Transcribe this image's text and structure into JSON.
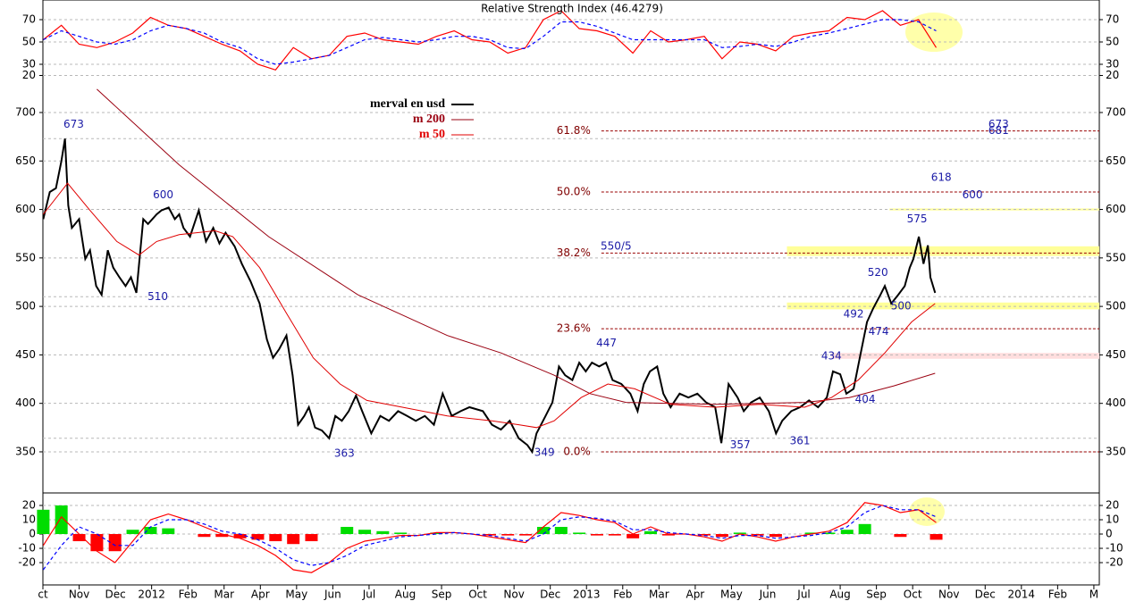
{
  "chart_data": [
    {
      "type": "line",
      "title": "Relative Strength Index (46.4279)",
      "xlim": [
        0,
        29.15
      ],
      "ylim": [
        10,
        87.6
      ],
      "yticks": [
        20,
        30,
        50,
        70
      ],
      "grid": true,
      "x": [
        0.01,
        0.51,
        1.0,
        1.49,
        1.99,
        2.48,
        2.97,
        3.46,
        3.96,
        4.45,
        4.94,
        5.44,
        5.93,
        6.42,
        6.91,
        7.41,
        7.9,
        8.39,
        8.88,
        9.38,
        9.87,
        10.36,
        10.86,
        11.35,
        11.84,
        12.33,
        12.83,
        13.32,
        13.81,
        14.3,
        14.8,
        15.29,
        15.78,
        16.28,
        16.77,
        17.26,
        17.75,
        18.25,
        18.74,
        19.23,
        19.72,
        20.22,
        20.71,
        21.2,
        21.69,
        22.19,
        22.68,
        23.17,
        23.66,
        24.16,
        24.65
      ],
      "series": [
        {
          "color": "#ff0000",
          "values": [
            52,
            65,
            48,
            45,
            50,
            58,
            72,
            65,
            62,
            55,
            48,
            42,
            30,
            25,
            45,
            35,
            38,
            55,
            58,
            52,
            50,
            48,
            55,
            60,
            52,
            50,
            40,
            45,
            70,
            78,
            62,
            60,
            55,
            40,
            60,
            50,
            52,
            55,
            35,
            50,
            48,
            42,
            55,
            58,
            60,
            72,
            70,
            78,
            65,
            70,
            45
          ]
        },
        {
          "color": "#0000ff",
          "dash": true,
          "values": [
            52,
            60,
            55,
            50,
            48,
            52,
            60,
            65,
            62,
            58,
            50,
            45,
            35,
            30,
            32,
            35,
            38,
            45,
            52,
            54,
            52,
            50,
            52,
            55,
            55,
            52,
            45,
            44,
            55,
            68,
            68,
            64,
            58,
            52,
            52,
            52,
            52,
            52,
            45,
            46,
            48,
            46,
            50,
            55,
            58,
            62,
            66,
            70,
            70,
            68,
            60
          ]
        }
      ]
    },
    {
      "type": "line",
      "xlim": [
        0,
        29.15
      ],
      "ylim": [
        307.6,
        726.7
      ],
      "yticks": [
        350,
        400,
        450,
        500,
        550,
        600,
        650,
        700
      ],
      "grid": true,
      "series": [
        {
          "name": "merval en usd",
          "color": "#000000",
          "width": 2,
          "x": [
            0.01,
            0.19,
            0.36,
            0.51,
            0.61,
            0.7,
            0.8,
            1.0,
            1.17,
            1.3,
            1.47,
            1.62,
            1.79,
            1.94,
            2.11,
            2.28,
            2.43,
            2.58,
            2.77,
            2.9,
            3.14,
            3.27,
            3.47,
            3.64,
            3.76,
            3.88,
            4.06,
            4.3,
            4.5,
            4.7,
            4.87,
            5.04,
            5.29,
            5.49,
            5.73,
            5.98,
            6.18,
            6.35,
            6.52,
            6.72,
            6.89,
            7.04,
            7.21,
            7.34,
            7.51,
            7.7,
            7.9,
            8.07,
            8.25,
            8.44,
            8.64,
            8.81,
            9.06,
            9.31,
            9.55,
            9.8,
            10.05,
            10.29,
            10.54,
            10.79,
            11.03,
            11.28,
            11.53,
            11.77,
            12.14,
            12.39,
            12.64,
            12.88,
            13.13,
            13.37,
            13.5,
            13.62,
            13.87,
            14.06,
            14.24,
            14.41,
            14.61,
            14.8,
            14.98,
            15.15,
            15.35,
            15.54,
            15.72,
            15.96,
            16.21,
            16.41,
            16.58,
            16.75,
            16.95,
            17.12,
            17.32,
            17.57,
            17.81,
            18.06,
            18.3,
            18.55,
            18.72,
            18.92,
            19.17,
            19.34,
            19.54,
            19.78,
            20.03,
            20.23,
            20.4,
            20.65,
            20.89,
            21.14,
            21.39,
            21.63,
            21.8,
            22.0,
            22.17,
            22.37,
            22.54,
            22.74,
            22.91,
            23.11,
            23.23,
            23.41,
            23.6,
            23.78,
            23.92,
            24.02,
            24.17,
            24.3,
            24.42,
            24.49,
            24.62
          ],
          "values": [
            590,
            618,
            622,
            650,
            673,
            604,
            581,
            590,
            549,
            558,
            521,
            512,
            558,
            540,
            530,
            521,
            530,
            514,
            590,
            585,
            595,
            599,
            602,
            590,
            595,
            581,
            572,
            599,
            567,
            581,
            565,
            576,
            562,
            544,
            526,
            503,
            466,
            447,
            456,
            470,
            429,
            378,
            387,
            396,
            375,
            372,
            364,
            387,
            382,
            392,
            408,
            392,
            369,
            387,
            382,
            392,
            387,
            382,
            387,
            378,
            410,
            387,
            392,
            396,
            392,
            378,
            373,
            382,
            364,
            357,
            350,
            369,
            387,
            401,
            438,
            429,
            424,
            442,
            433,
            442,
            438,
            442,
            424,
            420,
            410,
            392,
            420,
            433,
            438,
            410,
            396,
            410,
            406,
            410,
            401,
            396,
            359,
            420,
            406,
            392,
            401,
            406,
            392,
            369,
            382,
            392,
            396,
            403,
            396,
            406,
            433,
            430,
            410,
            415,
            447,
            484,
            498,
            512,
            521,
            503,
            512,
            521,
            540,
            549,
            572,
            544,
            563,
            530,
            514
          ]
        },
        {
          "name": "m 200",
          "color": "#9a0010",
          "width": 1,
          "x": [
            1.49,
            3.76,
            6.23,
            8.69,
            11.16,
            12.64,
            14.11,
            15.1,
            16.09,
            18.55,
            21.02,
            22.25,
            23.48,
            24.62
          ],
          "values": [
            724,
            646,
            572,
            512,
            470,
            452,
            429,
            410,
            401,
            399,
            401,
            406,
            418,
            431
          ]
        },
        {
          "name": "m 50",
          "color": "#e00000",
          "width": 1,
          "x": [
            0.01,
            0.68,
            1.3,
            2.04,
            2.65,
            3.14,
            3.76,
            4.75,
            5.24,
            5.98,
            6.72,
            7.46,
            8.2,
            8.94,
            9.92,
            11.16,
            12.39,
            13.13,
            13.62,
            14.11,
            14.85,
            15.59,
            16.33,
            17.32,
            18.55,
            19.78,
            21.02,
            21.76,
            22.5,
            23.23,
            23.97,
            24.62
          ],
          "values": [
            595,
            627,
            599,
            567,
            553,
            567,
            574,
            578,
            572,
            540,
            493,
            447,
            420,
            403,
            396,
            387,
            382,
            378,
            375,
            382,
            406,
            420,
            415,
            399,
            396,
            399,
            396,
            406,
            424,
            452,
            484,
            503
          ]
        }
      ],
      "hlines": [
        673,
        510,
        364
      ],
      "bands": [
        {
          "from": 552,
          "to": 562,
          "start": 20.53,
          "color": "#ffff99"
        },
        {
          "from": 497,
          "to": 504,
          "start": 20.53,
          "color": "#ffff99"
        },
        {
          "from": 446,
          "to": 452,
          "start": 21.76,
          "color": "#ffdede"
        },
        {
          "from": 599,
          "to": 601,
          "start": 23.36,
          "color": "#ffff99"
        }
      ],
      "fib_start": 15.41,
      "fibonacci": [
        {
          "label": "61.8%",
          "value": 681
        },
        {
          "label": "50.0%",
          "value": 618
        },
        {
          "label": "38.2%",
          "value": 555
        },
        {
          "label": "23.6%",
          "value": 477
        },
        {
          "label": "0.0%",
          "value": 350
        }
      ],
      "annotations": [
        {
          "x": 0.85,
          "value": 673,
          "side": "above"
        },
        {
          "x": 3.32,
          "value": 600,
          "side": "above"
        },
        {
          "x": 3.17,
          "value": 510,
          "side": "center"
        },
        {
          "x": 8.32,
          "value": 363,
          "side": "below"
        },
        {
          "x": 13.84,
          "value": 349,
          "side": "center"
        },
        {
          "x": 15.55,
          "value": 447,
          "side": "above"
        },
        {
          "x": 19.24,
          "value": 357,
          "side": "center"
        },
        {
          "x": 20.89,
          "value": 361,
          "side": "center"
        },
        {
          "x": 21.76,
          "value": 434,
          "side": "above"
        },
        {
          "x": 22.69,
          "value": 404,
          "side": "center"
        },
        {
          "x": 22.37,
          "value": 492,
          "side": "center"
        },
        {
          "x": 23.06,
          "value": 474,
          "side": "center"
        },
        {
          "x": 23.68,
          "value": 500,
          "side": "center"
        },
        {
          "x": 23.04,
          "value": 520,
          "side": "above"
        },
        {
          "x": 24.12,
          "value": 575,
          "side": "above"
        },
        {
          "x": 24.79,
          "value": 618,
          "side": "above"
        },
        {
          "x": 25.65,
          "value": 600,
          "side": "above"
        },
        {
          "x": 26.37,
          "value": 673,
          "side": "above"
        },
        {
          "x": 26.37,
          "value": 681,
          "side": "center"
        }
      ],
      "text_notes": [
        "550/5"
      ]
    },
    {
      "type": "line",
      "xlim": [
        0,
        29.15
      ],
      "ylim": [
        -35.6,
        28.75
      ],
      "yticks": [
        -20,
        -10,
        0,
        10,
        20
      ],
      "grid": true,
      "xticks": [
        {
          "value": 0,
          "label": "ct"
        },
        {
          "value": 1,
          "label": "Nov"
        },
        {
          "value": 2,
          "label": "Dec"
        },
        {
          "value": 3,
          "label": "2012"
        },
        {
          "value": 4,
          "label": "Feb"
        },
        {
          "value": 5,
          "label": "Mar"
        },
        {
          "value": 6,
          "label": "Apr"
        },
        {
          "value": 7,
          "label": "May"
        },
        {
          "value": 8,
          "label": "Jun"
        },
        {
          "value": 9,
          "label": "Jul"
        },
        {
          "value": 10,
          "label": "Aug"
        },
        {
          "value": 11,
          "label": "Sep"
        },
        {
          "value": 12,
          "label": "Oct"
        },
        {
          "value": 13,
          "label": "Nov"
        },
        {
          "value": 14,
          "label": "Dec"
        },
        {
          "value": 15,
          "label": "2013"
        },
        {
          "value": 16,
          "label": "Feb"
        },
        {
          "value": 17,
          "label": "Mar"
        },
        {
          "value": 18,
          "label": "Apr"
        },
        {
          "value": 19,
          "label": "May"
        },
        {
          "value": 20,
          "label": "Jun"
        },
        {
          "value": 21,
          "label": "Jul"
        },
        {
          "value": 22,
          "label": "Aug"
        },
        {
          "value": 23,
          "label": "Sep"
        },
        {
          "value": 24,
          "label": "Oct"
        },
        {
          "value": 25,
          "label": "Nov"
        },
        {
          "value": 26,
          "label": "Dec"
        },
        {
          "value": 27,
          "label": "2014"
        },
        {
          "value": 28,
          "label": "Feb"
        },
        {
          "value": 29,
          "label": "M"
        }
      ],
      "x": [
        0.01,
        0.51,
        1.0,
        1.49,
        1.99,
        2.48,
        2.97,
        3.46,
        3.96,
        4.45,
        4.94,
        5.44,
        5.93,
        6.42,
        6.91,
        7.41,
        7.9,
        8.39,
        8.88,
        9.38,
        9.87,
        10.36,
        10.86,
        11.35,
        11.84,
        12.33,
        12.83,
        13.32,
        13.81,
        14.3,
        14.8,
        15.29,
        15.78,
        16.28,
        16.77,
        17.26,
        17.75,
        18.25,
        18.74,
        19.23,
        19.72,
        20.22,
        20.71,
        21.2,
        21.69,
        22.19,
        22.68,
        23.17,
        23.66,
        24.16,
        24.65
      ],
      "histogram": {
        "colors": [
          "#00dd00",
          "#ff0000"
        ],
        "values": [
          17,
          20,
          -5,
          -12,
          -12,
          3,
          5,
          4,
          0,
          -2,
          -2,
          -3,
          -4,
          -5,
          -7,
          -5,
          0,
          5,
          3,
          2,
          1,
          0,
          1,
          0,
          0,
          -1,
          -1,
          -1,
          5,
          5,
          1,
          -1,
          -1,
          -3,
          2,
          -1,
          0,
          -1,
          -2,
          1,
          -1,
          -2,
          0,
          1,
          1,
          3,
          7,
          0,
          -2,
          0,
          -4
        ]
      },
      "series": [
        {
          "color": "#ff0000",
          "values": [
            -8,
            12,
            0,
            -12,
            -20,
            -5,
            10,
            14,
            10,
            5,
            0,
            -3,
            -8,
            -15,
            -25,
            -27,
            -20,
            -10,
            -5,
            -3,
            -1,
            -1,
            1,
            1,
            0,
            -2,
            -4,
            -6,
            5,
            15,
            13,
            10,
            8,
            0,
            5,
            0,
            0,
            -2,
            -5,
            0,
            -2,
            -5,
            -2,
            0,
            2,
            8,
            22,
            20,
            15,
            17,
            8
          ]
        },
        {
          "color": "#0000ff",
          "dash": true,
          "values": [
            -25,
            -8,
            5,
            0,
            -8,
            -8,
            5,
            10,
            10,
            7,
            2,
            0,
            -4,
            -10,
            -18,
            -22,
            -20,
            -15,
            -8,
            -5,
            -2,
            -1,
            0,
            1,
            0,
            -1,
            -3,
            -5,
            0,
            10,
            12,
            11,
            9,
            3,
            3,
            1,
            0,
            -1,
            -3,
            -1,
            -1,
            -3,
            -2,
            -1,
            1,
            5,
            15,
            20,
            17,
            17,
            12
          ]
        }
      ]
    }
  ]
}
